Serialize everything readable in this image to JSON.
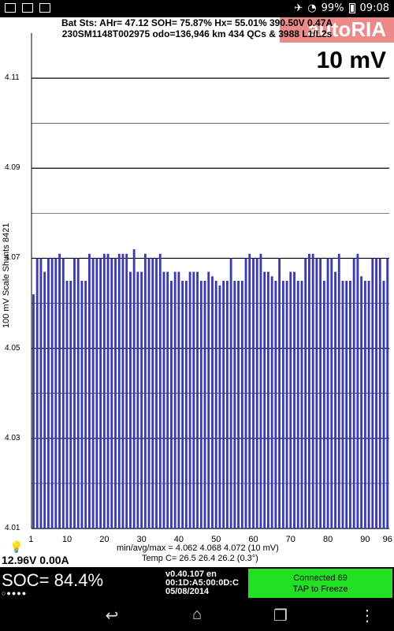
{
  "status_bar": {
    "battery": "99%",
    "time": "09:08",
    "icons": [
      "image-icon",
      "gallery-icon",
      "sd-card-icon",
      "airplane-icon",
      "wifi-icon",
      "battery-icon"
    ]
  },
  "watermark": "autoRIA",
  "header": {
    "line1": "Bat Sts:  AHr= 47.12  SOH= 75.87%  Hx= 55.01%  390.50V 0.47A",
    "line2": "230SM1148T002975 odo=136,946 km  434 QCs & 3988 L1/L2s"
  },
  "scale_label": "10 mV",
  "chart_data": {
    "type": "bar",
    "ylabel": "100 mV Scale   Shunts 8421",
    "ylim": [
      4.01,
      4.12
    ],
    "y_ticks": [
      "4.11",
      "4.09",
      "4.07",
      "4.05",
      "4.03",
      "4.01"
    ],
    "x_ticks": [
      "1",
      "10",
      "20",
      "30",
      "40",
      "50",
      "60",
      "70",
      "80",
      "90",
      "96"
    ],
    "x": [
      1,
      2,
      3,
      4,
      5,
      6,
      7,
      8,
      9,
      10,
      11,
      12,
      13,
      14,
      15,
      16,
      17,
      18,
      19,
      20,
      21,
      22,
      23,
      24,
      25,
      26,
      27,
      28,
      29,
      30,
      31,
      32,
      33,
      34,
      35,
      36,
      37,
      38,
      39,
      40,
      41,
      42,
      43,
      44,
      45,
      46,
      47,
      48,
      49,
      50,
      51,
      52,
      53,
      54,
      55,
      56,
      57,
      58,
      59,
      60,
      61,
      62,
      63,
      64,
      65,
      66,
      67,
      68,
      69,
      70,
      71,
      72,
      73,
      74,
      75,
      76,
      77,
      78,
      79,
      80,
      81,
      82,
      83,
      84,
      85,
      86,
      87,
      88,
      89,
      90,
      91,
      92,
      93,
      94,
      95,
      96
    ],
    "values": [
      4.062,
      4.07,
      4.07,
      4.067,
      4.07,
      4.07,
      4.07,
      4.071,
      4.07,
      4.065,
      4.065,
      4.07,
      4.07,
      4.065,
      4.065,
      4.071,
      4.07,
      4.07,
      4.07,
      4.071,
      4.071,
      4.07,
      4.07,
      4.071,
      4.071,
      4.071,
      4.067,
      4.072,
      4.067,
      4.067,
      4.071,
      4.07,
      4.07,
      4.07,
      4.071,
      4.067,
      4.067,
      4.065,
      4.067,
      4.067,
      4.065,
      4.065,
      4.067,
      4.067,
      4.067,
      4.065,
      4.065,
      4.067,
      4.066,
      4.065,
      4.064,
      4.065,
      4.065,
      4.07,
      4.065,
      4.065,
      4.065,
      4.07,
      4.071,
      4.07,
      4.07,
      4.071,
      4.067,
      4.067,
      4.066,
      4.065,
      4.07,
      4.065,
      4.065,
      4.067,
      4.067,
      4.065,
      4.065,
      4.07,
      4.071,
      4.071,
      4.07,
      4.07,
      4.065,
      4.07,
      4.07,
      4.067,
      4.071,
      4.065,
      4.065,
      4.065,
      4.07,
      4.071,
      4.066,
      4.065,
      4.065,
      4.07,
      4.07,
      4.07,
      4.065,
      4.07
    ]
  },
  "stats": {
    "minavgmax": "min/avg/max = 4.062 4.068 4.072  (10 mV)",
    "temp": "Temp C= 26.5  26.4  26.2  (0.3°)"
  },
  "pack": "12.96V 0.00A",
  "soc": "SOC= 84.4%",
  "soc_dots": "○●●●●",
  "info": [
    "v0.40.107 en",
    "00:1D:A5:00:0D:C",
    "05/08/2014"
  ],
  "connected": {
    "line1": "Connected 69",
    "line2": "TAP to Freeze"
  },
  "colors": {
    "bar": "#3838c0",
    "connected_bg": "#22e022"
  }
}
